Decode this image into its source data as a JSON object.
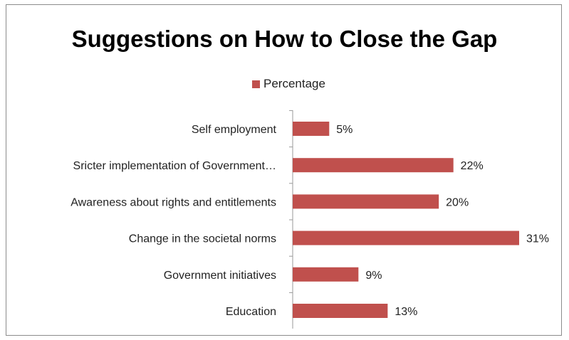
{
  "chart_data": {
    "type": "bar",
    "orientation": "horizontal",
    "title": "Suggestions on How to Close the Gap",
    "categories": [
      "Self employment",
      "Sricter implementation of Government…",
      "Awareness about rights and entitlements",
      "Change in the societal norms",
      "Government initiatives",
      "Education"
    ],
    "series": [
      {
        "name": "Percentage",
        "values": [
          5,
          22,
          20,
          31,
          9,
          13
        ],
        "labels": [
          "5%",
          "22%",
          "20%",
          "31%",
          "9%",
          "13%"
        ]
      }
    ],
    "xlim": [
      0,
      33
    ],
    "grid": false,
    "legend_position": "top",
    "bar_color": "#c0504d"
  }
}
